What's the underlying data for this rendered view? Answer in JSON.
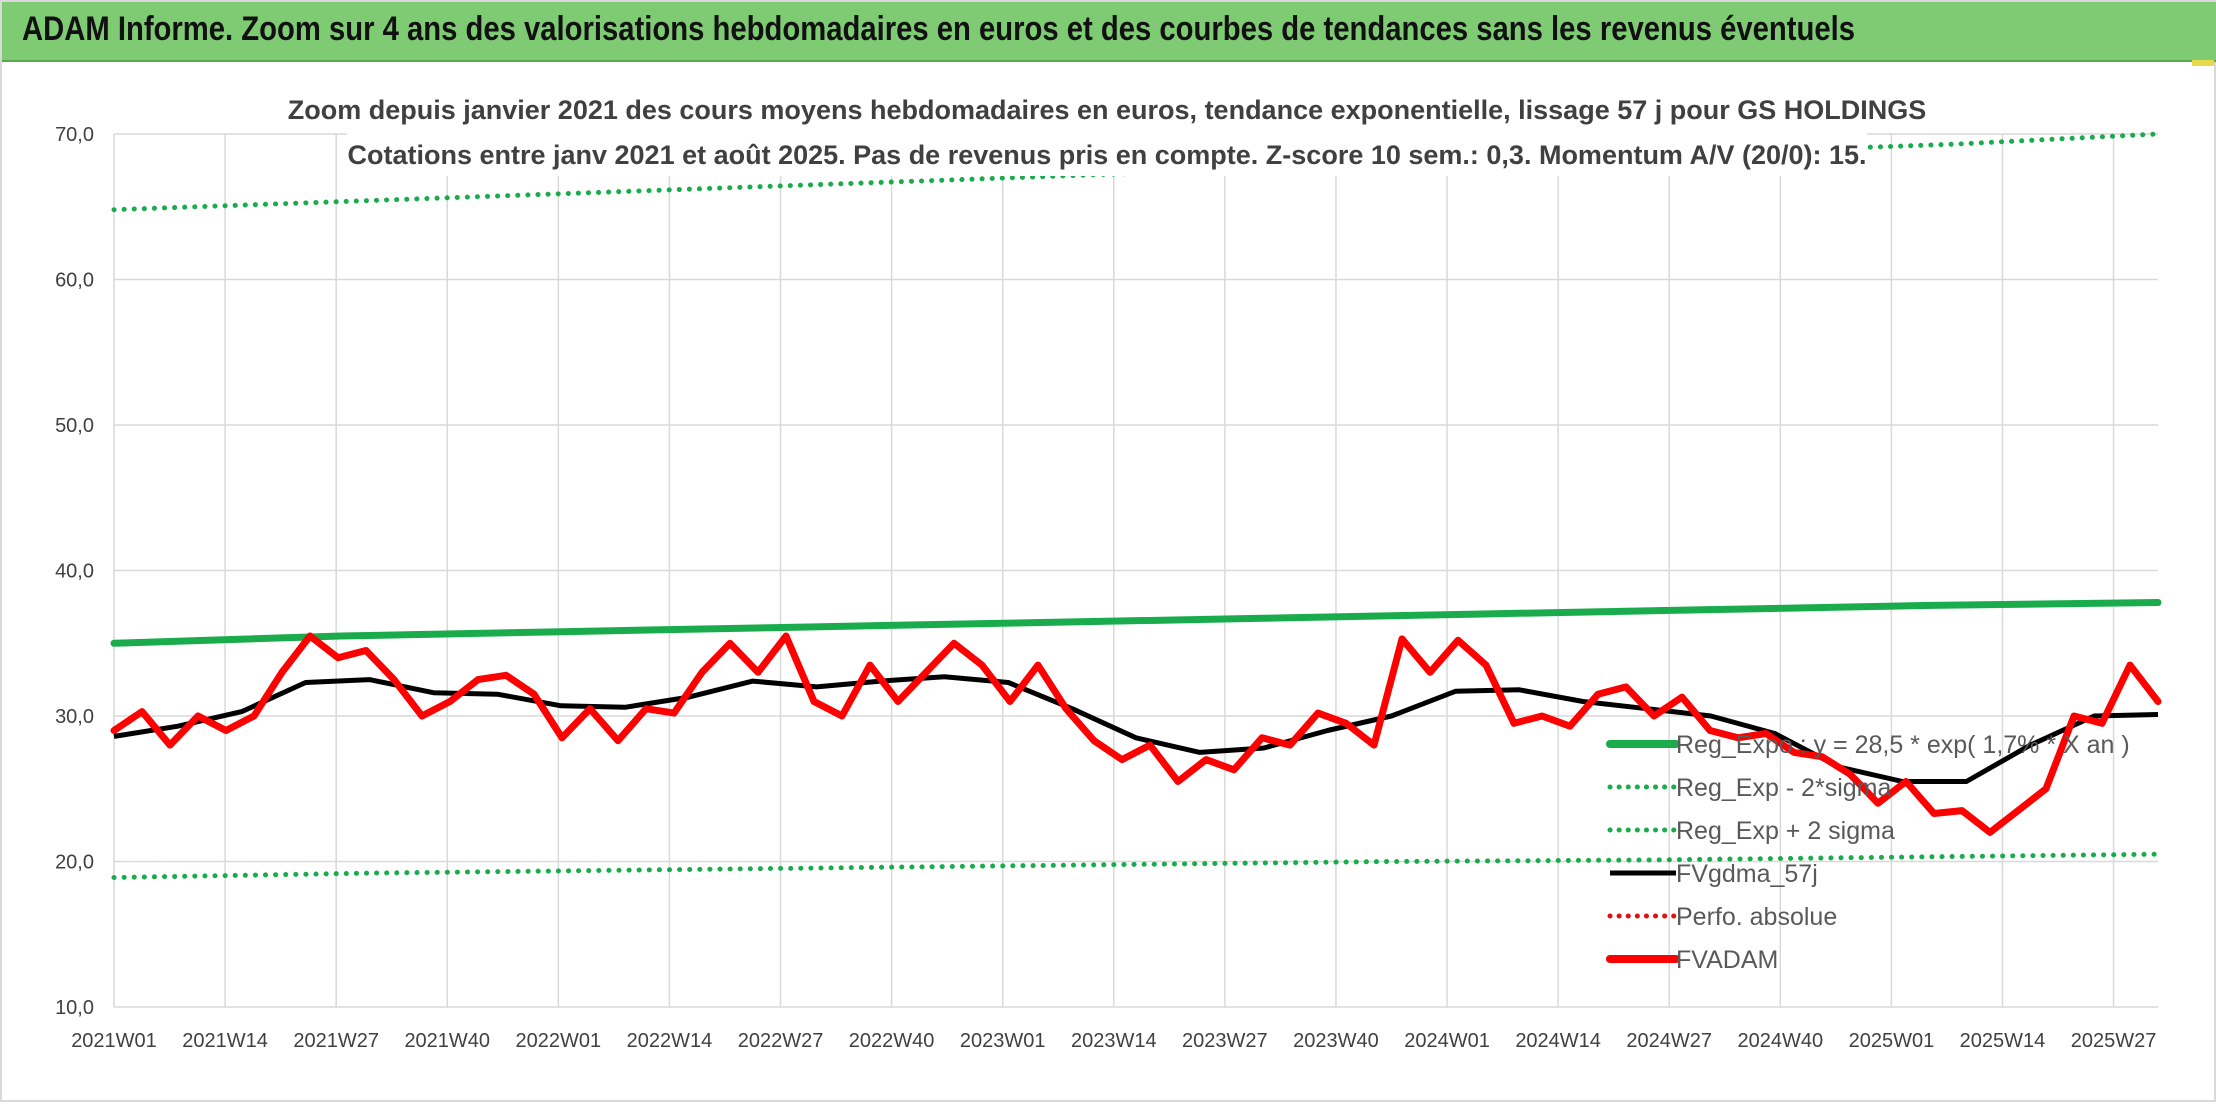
{
  "header": {
    "title": "ADAM Informe. Zoom sur 4 ans des valorisations hebdomadaires en euros et des courbes de tendances sans les revenus éventuels"
  },
  "colors": {
    "header_bg": "#7ecb73",
    "trend_green": "#1aac4c",
    "fv_black": "#000000",
    "fvadam_red": "#ff0000",
    "perfo_red": "#e01010",
    "grid": "#d9d9d9"
  },
  "chart_data": {
    "type": "line",
    "title_line1": "Zoom depuis janvier 2021 des cours moyens hebdomadaires en euros, tendance exponentielle, lissage 57 j pour GS HOLDINGS",
    "title_line2": "Cotations entre janv 2021 et août 2025. Pas de revenus pris en compte. Z-score 10 sem.: 0,3. Momentum A/V (20/0): 15.",
    "ylim": [
      10,
      70
    ],
    "y_ticks": [
      "10,0",
      "20,0",
      "30,0",
      "40,0",
      "50,0",
      "60,0",
      "70,0"
    ],
    "x_ticks": [
      "2021W01",
      "2021W14",
      "2021W27",
      "2021W40",
      "2022W01",
      "2022W14",
      "2022W27",
      "2022W40",
      "2023W01",
      "2023W14",
      "2023W27",
      "2023W40",
      "2024W01",
      "2024W14",
      "2024W27",
      "2024W40",
      "2025W01",
      "2025W14",
      "2025W27"
    ],
    "grid": true,
    "legend_position": "right",
    "series": [
      {
        "name": "Reg_Expo : y = 28,5 * exp( 1,7% *  X  an )",
        "style": "solid-thick",
        "color": "#1aac4c",
        "values": [
          35.0,
          35.5,
          35.8,
          36.1,
          36.4,
          36.7,
          37.0,
          37.3,
          37.6,
          37.8
        ]
      },
      {
        "name": "Reg_Exp - 2*sigma",
        "style": "dotted",
        "color": "#1aac4c",
        "values": [
          18.9,
          19.2,
          19.4,
          19.6,
          19.8,
          20.0,
          20.1,
          20.3,
          20.5
        ]
      },
      {
        "name": "Reg_Exp + 2 sigma",
        "style": "dotted",
        "color": "#1aac4c",
        "values": [
          64.8,
          65.3,
          65.8,
          66.3,
          66.8,
          67.3,
          67.8,
          68.3,
          68.8,
          69.3,
          70.0
        ]
      },
      {
        "name": "FVgdma_57j",
        "style": "solid",
        "color": "#000000",
        "values": [
          28.6,
          29.3,
          30.3,
          32.3,
          32.5,
          31.6,
          31.5,
          30.7,
          30.6,
          31.3,
          32.4,
          32.0,
          32.4,
          32.7,
          32.3,
          30.5,
          28.5,
          27.5,
          27.8,
          29.0,
          30.0,
          31.7,
          31.8,
          31.0,
          30.5,
          30.0,
          28.8,
          26.5,
          25.5,
          25.5,
          28.0,
          30.0,
          30.1
        ]
      },
      {
        "name": "Perfo. absolue",
        "style": "dotted",
        "color": "#e01010",
        "values": []
      },
      {
        "name": "FVADAM",
        "style": "solid-thick",
        "color": "#ff0000",
        "values": [
          29.0,
          30.3,
          28.0,
          30.0,
          29.0,
          30.0,
          33.0,
          35.5,
          34.0,
          34.5,
          32.5,
          30.0,
          31.0,
          32.5,
          32.8,
          31.5,
          28.5,
          30.5,
          28.3,
          30.5,
          30.2,
          33.0,
          35.0,
          33.0,
          35.5,
          31.0,
          30.0,
          33.5,
          31.0,
          33.0,
          35.0,
          33.5,
          31.0,
          33.5,
          30.5,
          28.3,
          27.0,
          28.0,
          25.5,
          27.0,
          26.3,
          28.5,
          28.0,
          30.2,
          29.5,
          28.0,
          35.3,
          33.0,
          35.2,
          33.5,
          29.5,
          30.0,
          29.3,
          31.5,
          32.0,
          30.0,
          31.3,
          29.0,
          28.5,
          28.8,
          27.5,
          27.2,
          26.0,
          24.0,
          25.5,
          23.3,
          23.5,
          22.0,
          23.5,
          25.0,
          30.0,
          29.5,
          33.5,
          31.0
        ]
      }
    ]
  }
}
